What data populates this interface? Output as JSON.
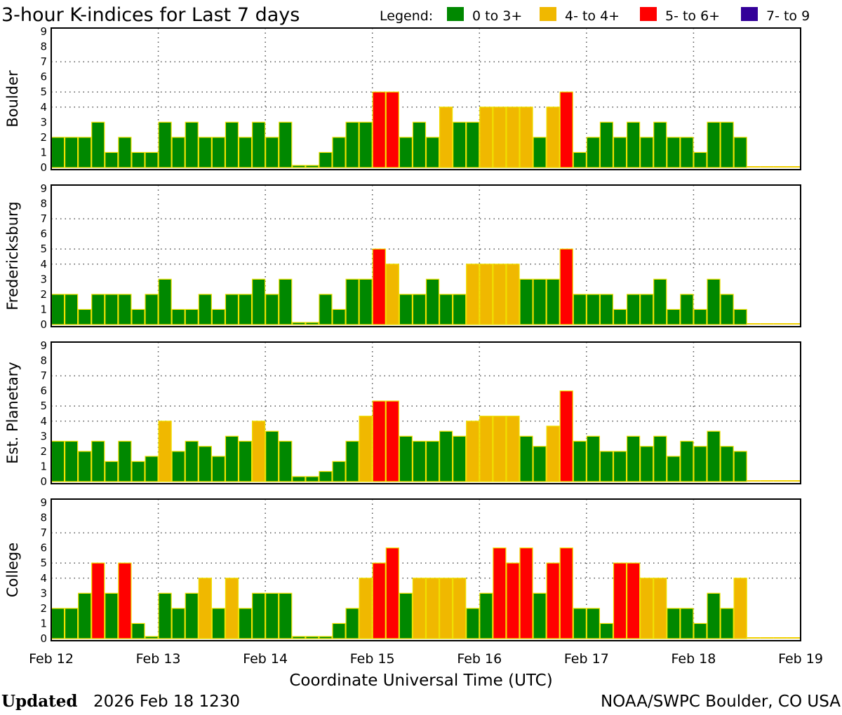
{
  "chart_data": {
    "type": "bar",
    "title": "3-hour K-indices for Last 7 days",
    "legend": {
      "label": "Legend:",
      "placement": "top-right",
      "entries": [
        {
          "label": "0 to 3+",
          "color": "#008800"
        },
        {
          "label": "4- to 4+",
          "color": "#f0b800"
        },
        {
          "label": "5- to 6+",
          "color": "#ff0000"
        },
        {
          "label": "7- to 9",
          "color": "#330099"
        }
      ]
    },
    "xlabel": "Coordinate Universal Time (UTC)",
    "x_tick_labels": [
      "Feb 12",
      "Feb 13",
      "Feb 14",
      "Feb 15",
      "Feb 16",
      "Feb 17",
      "Feb 18",
      "Feb 19"
    ],
    "interval_hours": 3,
    "ylim": [
      0,
      9
    ],
    "yticks": [
      "0",
      "1",
      "2",
      "3",
      "4",
      "5",
      "6",
      "7",
      "8",
      "9"
    ],
    "gridlines_y": [
      4,
      5,
      7
    ],
    "series": [
      {
        "name": "Boulder",
        "values": [
          2,
          2,
          2,
          3,
          1,
          2,
          1,
          1,
          3,
          2,
          3,
          2,
          2,
          3,
          2,
          3,
          2,
          3,
          0,
          0,
          1,
          2,
          3,
          3,
          5,
          5,
          2,
          3,
          2,
          4,
          3,
          3,
          4,
          4,
          4,
          4,
          2,
          4,
          5,
          1,
          2,
          3,
          2,
          3,
          2,
          3,
          2,
          2,
          1,
          3,
          3,
          2,
          null,
          null,
          null,
          null
        ]
      },
      {
        "name": "Fredericksburg",
        "values": [
          2,
          2,
          1,
          2,
          2,
          2,
          1,
          2,
          3,
          1,
          1,
          2,
          1,
          2,
          2,
          3,
          2,
          3,
          0,
          0,
          2,
          1,
          3,
          3,
          5,
          4,
          2,
          2,
          3,
          2,
          2,
          4,
          4,
          4,
          4,
          3,
          3,
          3,
          5,
          2,
          2,
          2,
          1,
          2,
          2,
          3,
          1,
          2,
          1,
          3,
          2,
          1,
          null,
          null,
          null,
          null
        ]
      },
      {
        "name": "Est. Planetary",
        "values": [
          2.67,
          2.67,
          2,
          2.67,
          1.33,
          2.67,
          1.33,
          1.67,
          4,
          2,
          2.67,
          2.33,
          1.67,
          3,
          2.67,
          4,
          3.33,
          2.67,
          0.33,
          0.33,
          0.67,
          1.33,
          2.67,
          4.33,
          5.33,
          5.33,
          3,
          2.67,
          2.67,
          3.33,
          3,
          4,
          4.33,
          4.33,
          4.33,
          3,
          2.33,
          3.67,
          6,
          2.67,
          3,
          2,
          2,
          3,
          2.33,
          3,
          1.67,
          2.67,
          2.33,
          3.33,
          2.33,
          2,
          null,
          null,
          null,
          null
        ]
      },
      {
        "name": "College",
        "values": [
          2,
          2,
          3,
          5,
          3,
          5,
          1,
          0,
          3,
          2,
          3,
          4,
          2,
          4,
          2,
          3,
          3,
          3,
          0,
          0,
          0,
          1,
          2,
          4,
          5,
          6,
          3,
          4,
          4,
          4,
          4,
          2,
          3,
          6,
          5,
          6,
          3,
          5,
          6,
          2,
          2,
          1,
          5,
          5,
          4,
          4,
          2,
          2,
          1,
          3,
          2,
          4,
          null,
          null,
          null,
          null
        ]
      }
    ]
  },
  "footer": {
    "updated_label": "Updated",
    "updated_value": "2026 Feb 18 1230",
    "credit": "NOAA/SWPC Boulder, CO USA"
  }
}
